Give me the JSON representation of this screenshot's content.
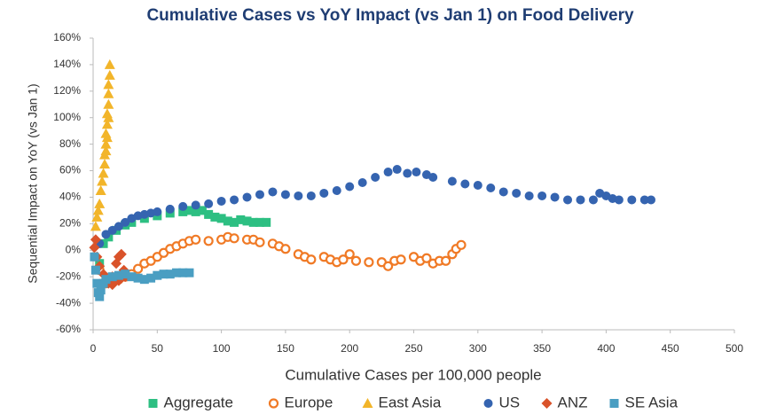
{
  "chart_data": {
    "type": "scatter",
    "title": "Cumulative Cases vs YoY Impact (vs Jan 1) on Food Delivery",
    "x_label": "Cumulative Cases per 100,000 people",
    "y_label": "Sequential Impact on YoY (vs Jan 1)",
    "xlim": [
      0,
      500
    ],
    "xticks": [
      0,
      50,
      100,
      150,
      200,
      250,
      300,
      350,
      400,
      450,
      500
    ],
    "ylim": [
      -60,
      160
    ],
    "yticks": [
      {
        "value": -60,
        "label": "-60%"
      },
      {
        "value": -40,
        "label": "-40%"
      },
      {
        "value": -20,
        "label": "-20%"
      },
      {
        "value": 0,
        "label": "0%"
      },
      {
        "value": 20,
        "label": "20%"
      },
      {
        "value": 40,
        "label": "40%"
      },
      {
        "value": 60,
        "label": "60%"
      },
      {
        "value": 80,
        "label": "80%"
      },
      {
        "value": 100,
        "label": "100%"
      },
      {
        "value": 120,
        "label": "120%"
      },
      {
        "value": 140,
        "label": "140%"
      },
      {
        "value": 160,
        "label": "160%"
      }
    ],
    "grid": false,
    "legend": "bottom",
    "series": [
      {
        "name": "Aggregate",
        "color": "#2dbf82",
        "marker": "square",
        "x": [
          5,
          8,
          12,
          18,
          25,
          30,
          40,
          50,
          60,
          70,
          75,
          80,
          85,
          90,
          95,
          100,
          105,
          110,
          115,
          120,
          125,
          130,
          135
        ],
        "values": [
          -10,
          5,
          10,
          15,
          19,
          21,
          24,
          26,
          28,
          29,
          30,
          29,
          30,
          27,
          25,
          24,
          22,
          21,
          23,
          22,
          21,
          21,
          21
        ]
      },
      {
        "name": "Europe",
        "color": "#f07a26",
        "marker": "open-circle",
        "x": [
          5,
          10,
          15,
          20,
          25,
          30,
          35,
          40,
          45,
          50,
          55,
          60,
          65,
          70,
          75,
          80,
          90,
          100,
          105,
          110,
          120,
          125,
          130,
          140,
          145,
          150,
          160,
          165,
          170,
          180,
          185,
          190,
          195,
          200,
          205,
          215,
          225,
          230,
          235,
          240,
          250,
          255,
          260,
          265,
          270,
          275,
          280,
          283,
          287
        ],
        "values": [
          -15,
          -25,
          -24,
          -22,
          -20,
          -18,
          -14,
          -10,
          -8,
          -5,
          -2,
          1,
          3,
          5,
          7,
          8,
          7,
          8,
          10,
          9,
          8,
          8,
          6,
          5,
          3,
          1,
          -3,
          -5,
          -7,
          -5,
          -7,
          -9,
          -7,
          -3,
          -8,
          -9,
          -9,
          -12,
          -8,
          -7,
          -5,
          -8,
          -6,
          -10,
          -8,
          -8,
          -3,
          1,
          4
        ]
      },
      {
        "name": "East Asia",
        "color": "#f2b52a",
        "marker": "triangle",
        "x": [
          2,
          3,
          4,
          5,
          6,
          7,
          8,
          9,
          9,
          10,
          10,
          11,
          11,
          12,
          12,
          12,
          13,
          13,
          12,
          11,
          10
        ],
        "values": [
          18,
          25,
          30,
          35,
          45,
          52,
          58,
          65,
          72,
          80,
          88,
          95,
          103,
          110,
          118,
          125,
          132,
          140,
          100,
          85,
          75
        ]
      },
      {
        "name": "US",
        "color": "#3564b0",
        "marker": "circle",
        "x": [
          5,
          10,
          15,
          20,
          25,
          30,
          35,
          40,
          45,
          50,
          60,
          70,
          80,
          90,
          100,
          110,
          120,
          130,
          140,
          150,
          160,
          170,
          180,
          190,
          200,
          210,
          220,
          230,
          237,
          245,
          252,
          260,
          265,
          280,
          290,
          300,
          310,
          320,
          330,
          340,
          350,
          360,
          370,
          380,
          390,
          395,
          400,
          405,
          410,
          420,
          430,
          435
        ],
        "values": [
          5,
          12,
          15,
          18,
          21,
          24,
          26,
          27,
          28,
          29,
          31,
          33,
          34,
          35,
          37,
          38,
          40,
          42,
          44,
          42,
          41,
          41,
          43,
          45,
          48,
          51,
          55,
          59,
          61,
          58,
          59,
          57,
          55,
          52,
          50,
          49,
          47,
          44,
          43,
          41,
          41,
          40,
          38,
          38,
          38,
          43,
          41,
          39,
          38,
          38,
          38,
          38
        ]
      },
      {
        "name": "ANZ",
        "color": "#d9532a",
        "marker": "diamond",
        "x": [
          1,
          2,
          3,
          5,
          8,
          10,
          12,
          15,
          18,
          20,
          22,
          24,
          25,
          20,
          15
        ],
        "values": [
          2,
          8,
          -5,
          -12,
          -18,
          -22,
          -25,
          -20,
          -10,
          -5,
          -3,
          -15,
          -20,
          -23,
          -26
        ]
      },
      {
        "name": "SE Asia",
        "color": "#4a9ec2",
        "marker": "square",
        "x": [
          1,
          2,
          3,
          4,
          5,
          6,
          8,
          10,
          15,
          20,
          25,
          30,
          35,
          40,
          45,
          50,
          55,
          60,
          65,
          70,
          75
        ],
        "values": [
          -5,
          -15,
          -25,
          -32,
          -35,
          -30,
          -25,
          -22,
          -20,
          -19,
          -18,
          -20,
          -21,
          -22,
          -21,
          -19,
          -18,
          -18,
          -17,
          -17,
          -17
        ]
      }
    ]
  }
}
